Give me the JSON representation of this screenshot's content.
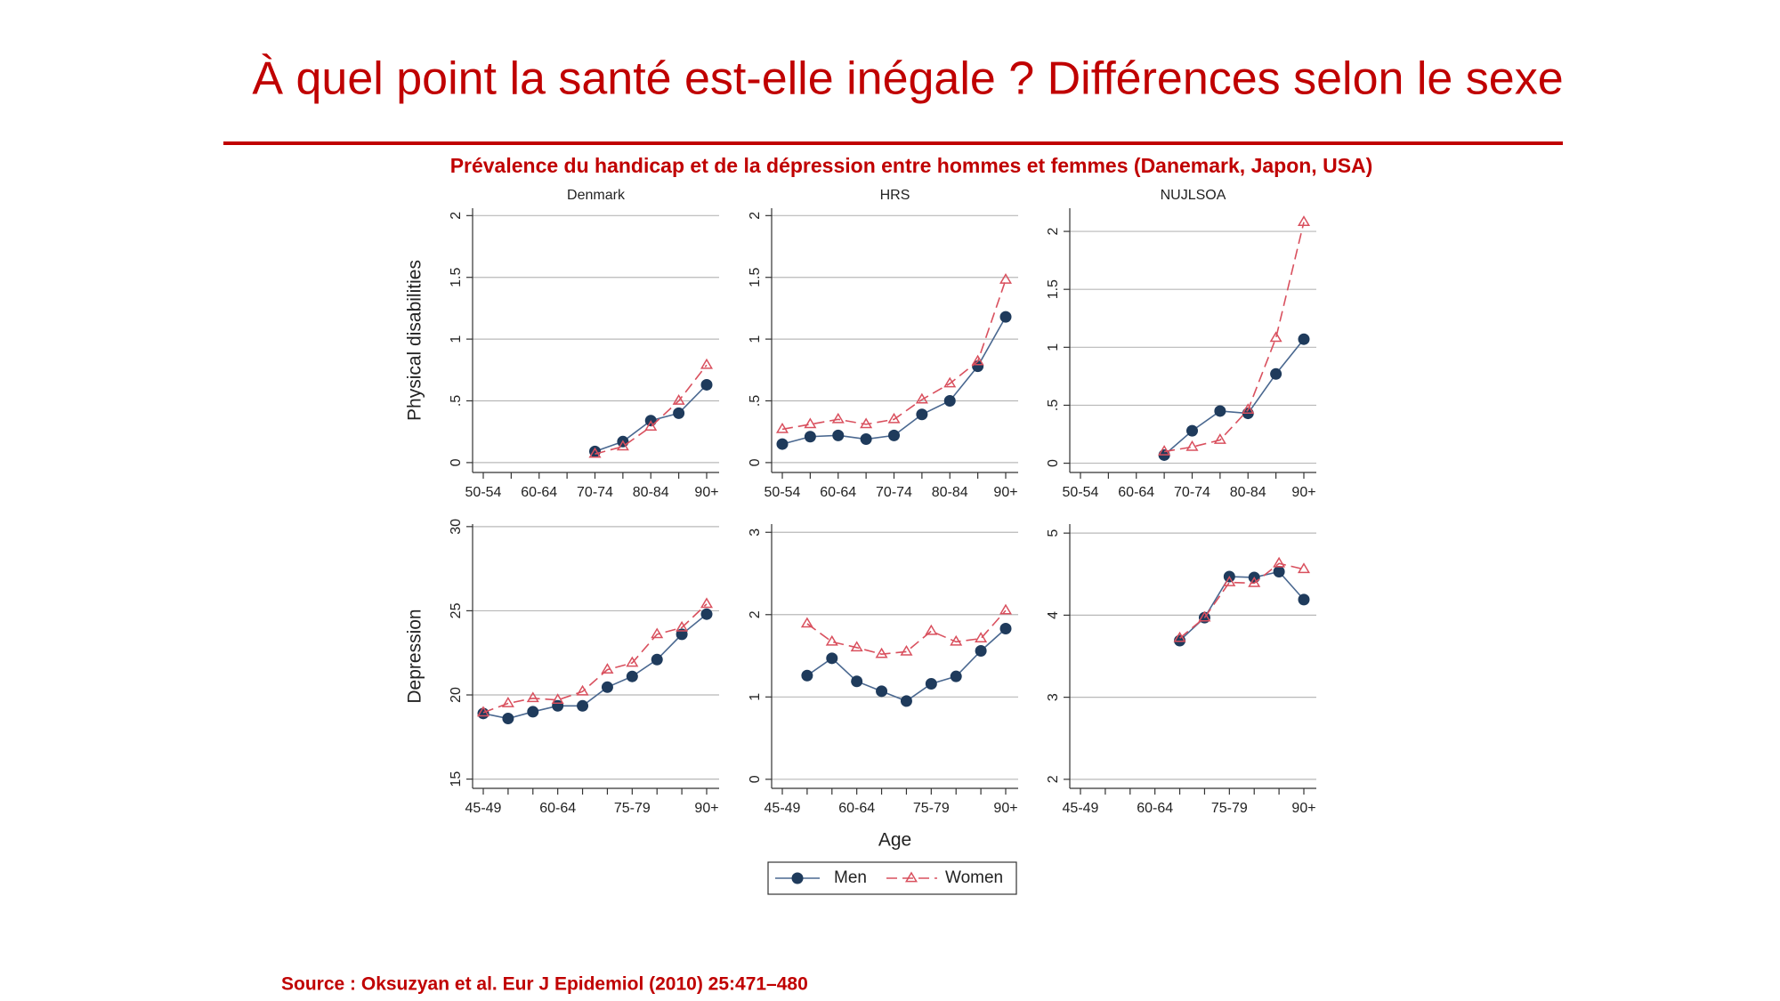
{
  "title": "À quel point la santé est-elle inégale ? Différences selon le sexe",
  "subtitle": "Prévalence du handicap et de la dépression entre hommes et femmes (Danemark, Japon, USA)",
  "source": "Source : Oksuzyan et al. Eur J Epidemiol (2010) 25:471–480",
  "chart_data": [
    {
      "type": "line",
      "title": "Denmark",
      "ylabel": "Physical disabilities",
      "categories": [
        "50-54",
        null,
        "60-64",
        null,
        "70-74",
        null,
        "80-84",
        null,
        "90+"
      ],
      "ylim": [
        -0.08,
        2.06
      ],
      "yticks": [
        0,
        {
          "value": 0.5,
          "label": ".5"
        },
        1,
        1.5,
        2
      ],
      "grid": true,
      "series": [
        {
          "name": "Men",
          "color": "#1f3b5c",
          "values": [
            null,
            null,
            null,
            null,
            0.09,
            0.17,
            0.34,
            0.4,
            0.63
          ]
        },
        {
          "name": "Women",
          "color": "#d9505e",
          "values": [
            null,
            null,
            null,
            null,
            0.07,
            0.13,
            0.29,
            0.5,
            0.79
          ]
        }
      ]
    },
    {
      "type": "line",
      "title": "HRS",
      "categories": [
        "50-54",
        null,
        "60-64",
        null,
        "70-74",
        null,
        "80-84",
        null,
        "90+"
      ],
      "ylim": [
        -0.08,
        2.06
      ],
      "yticks": [
        0,
        {
          "value": 0.5,
          "label": ".5"
        },
        1,
        1.5,
        2
      ],
      "grid": true,
      "series": [
        {
          "name": "Men",
          "color": "#1f3b5c",
          "values": [
            0.15,
            0.21,
            0.22,
            0.19,
            0.22,
            0.39,
            0.5,
            0.78,
            1.18
          ]
        },
        {
          "name": "Women",
          "color": "#d9505e",
          "values": [
            0.27,
            0.31,
            0.35,
            0.31,
            0.35,
            0.51,
            0.64,
            0.82,
            1.48
          ]
        }
      ]
    },
    {
      "type": "line",
      "title": "NUJLSOA",
      "categories": [
        "50-54",
        null,
        "60-64",
        null,
        "70-74",
        null,
        "80-84",
        null,
        "90+"
      ],
      "ylim": [
        -0.08,
        2.2
      ],
      "yticks": [
        0,
        {
          "value": 0.5,
          "label": ".5"
        },
        1,
        1.5,
        2
      ],
      "grid": true,
      "series": [
        {
          "name": "Men",
          "color": "#1f3b5c",
          "values": [
            null,
            null,
            null,
            0.07,
            0.28,
            0.45,
            0.43,
            0.77,
            1.07
          ]
        },
        {
          "name": "Women",
          "color": "#d9505e",
          "values": [
            null,
            null,
            null,
            0.1,
            0.14,
            0.2,
            0.46,
            1.08,
            2.08
          ]
        }
      ]
    },
    {
      "type": "line",
      "ylabel": "Depression",
      "categories": [
        "45-49",
        null,
        null,
        "60-64",
        null,
        null,
        "75-79",
        null,
        null,
        "90+"
      ],
      "ylim": [
        14.45,
        30.15
      ],
      "yticks": [
        15,
        20,
        25,
        30
      ],
      "grid": true,
      "series": [
        {
          "name": "Men",
          "color": "#1f3b5c",
          "values": [
            18.9,
            18.6,
            19.0,
            19.35,
            19.35,
            20.46,
            21.1,
            22.1,
            23.6,
            24.8
          ]
        },
        {
          "name": "Women",
          "color": "#d9505e",
          "values": [
            18.95,
            19.5,
            19.8,
            19.7,
            20.2,
            21.5,
            21.9,
            23.6,
            24.0,
            25.4
          ]
        }
      ]
    },
    {
      "type": "line",
      "xlabel": "Age",
      "legend": "bottom",
      "categories": [
        "45-49",
        null,
        null,
        "60-64",
        null,
        null,
        "75-79",
        null,
        null,
        "90+"
      ],
      "ylim": [
        -0.11,
        3.1
      ],
      "yticks": [
        0,
        1,
        2,
        3
      ],
      "grid": true,
      "series": [
        {
          "name": "Men",
          "color": "#1f3b5c",
          "values": [
            null,
            1.26,
            1.47,
            1.19,
            1.07,
            0.95,
            1.16,
            1.25,
            1.56,
            1.83
          ]
        },
        {
          "name": "Women",
          "color": "#d9505e",
          "values": [
            null,
            1.89,
            1.67,
            1.6,
            1.52,
            1.55,
            1.8,
            1.67,
            1.71,
            2.05
          ]
        }
      ]
    },
    {
      "type": "line",
      "categories": [
        "45-49",
        null,
        null,
        "60-64",
        null,
        null,
        "75-79",
        null,
        null,
        "90+"
      ],
      "ylim": [
        1.89,
        5.11
      ],
      "yticks": [
        2,
        3,
        4,
        5
      ],
      "grid": true,
      "series": [
        {
          "name": "Men",
          "color": "#1f3b5c",
          "values": [
            null,
            null,
            null,
            null,
            3.69,
            3.97,
            4.47,
            4.46,
            4.53,
            4.19
          ]
        },
        {
          "name": "Women",
          "color": "#d9505e",
          "values": [
            null,
            null,
            null,
            null,
            3.72,
            3.97,
            4.4,
            4.39,
            4.63,
            4.56
          ]
        }
      ]
    }
  ]
}
